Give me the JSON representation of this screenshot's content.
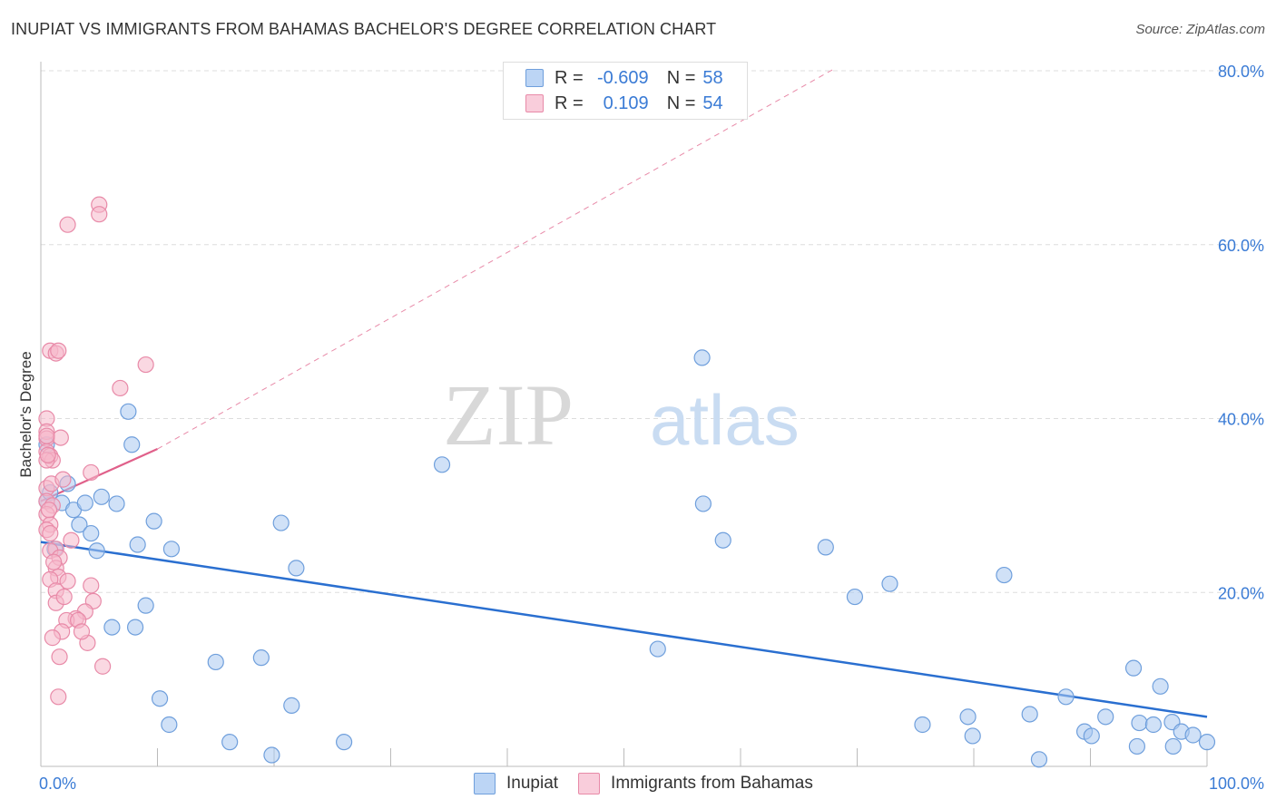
{
  "header": {
    "title": "INUPIAT VS IMMIGRANTS FROM BAHAMAS BACHELOR'S DEGREE CORRELATION CHART",
    "source": "Source: ZipAtlas.com"
  },
  "legend": {
    "r_label": "R =",
    "n_label": "N =",
    "series": [
      {
        "name": "Inupiat",
        "r": "-0.609",
        "n": "58"
      },
      {
        "name": "Immigrants from Bahamas",
        "r": "0.109",
        "n": "54"
      }
    ]
  },
  "watermark": {
    "zip": "ZIP",
    "atlas": "atlas"
  },
  "colors": {
    "inupiat_fill": "#a9c8f0",
    "inupiat_stroke": "#6f9fdc",
    "inupiat_line": "#2a6fd0",
    "bahamas_fill": "#f6b8cb",
    "bahamas_stroke": "#e88aa8",
    "bahamas_line": "#e0608a",
    "axis_label": "#3a7bd5",
    "grid": "#dddddd"
  },
  "chart_data": {
    "type": "scatter",
    "title": "INUPIAT VS IMMIGRANTS FROM BAHAMAS BACHELOR'S DEGREE CORRELATION CHART",
    "xlabel": "",
    "ylabel": "Bachelor's Degree",
    "xlim": [
      0,
      100
    ],
    "ylim": [
      0,
      80
    ],
    "x_tick_labels": [
      {
        "value": 0,
        "label": "0.0%"
      },
      {
        "value": 100,
        "label": "100.0%"
      }
    ],
    "y_ticks": [
      {
        "value": 20,
        "label": "20.0%"
      },
      {
        "value": 40,
        "label": "40.0%"
      },
      {
        "value": 60,
        "label": "60.0%"
      },
      {
        "value": 80,
        "label": "80.0%"
      }
    ],
    "series": [
      {
        "name": "Inupiat",
        "r": -0.609,
        "n": 58,
        "trend": {
          "x": [
            0,
            100
          ],
          "y": [
            25.8,
            5.7
          ],
          "style": "solid"
        },
        "points": [
          [
            0.5,
            37.0
          ],
          [
            0.5,
            30.5
          ],
          [
            0.8,
            31.5
          ],
          [
            1.2,
            25.0
          ],
          [
            1.8,
            30.3
          ],
          [
            2.3,
            32.5
          ],
          [
            2.8,
            29.5
          ],
          [
            3.3,
            27.8
          ],
          [
            3.8,
            30.3
          ],
          [
            4.3,
            26.8
          ],
          [
            4.8,
            24.8
          ],
          [
            5.2,
            31.0
          ],
          [
            6.1,
            16.0
          ],
          [
            6.5,
            30.2
          ],
          [
            7.5,
            40.8
          ],
          [
            7.8,
            37.0
          ],
          [
            8.1,
            16.0
          ],
          [
            8.3,
            25.5
          ],
          [
            9.0,
            18.5
          ],
          [
            9.7,
            28.2
          ],
          [
            10.2,
            7.8
          ],
          [
            11.0,
            4.8
          ],
          [
            11.2,
            25.0
          ],
          [
            15.0,
            12.0
          ],
          [
            16.2,
            2.8
          ],
          [
            18.9,
            12.5
          ],
          [
            19.8,
            1.3
          ],
          [
            20.6,
            28.0
          ],
          [
            21.5,
            7.0
          ],
          [
            21.9,
            22.8
          ],
          [
            26.0,
            2.8
          ],
          [
            34.4,
            34.7
          ],
          [
            52.9,
            13.5
          ],
          [
            56.7,
            47.0
          ],
          [
            56.8,
            30.2
          ],
          [
            58.5,
            26.0
          ],
          [
            67.3,
            25.2
          ],
          [
            69.8,
            19.5
          ],
          [
            72.8,
            21.0
          ],
          [
            75.6,
            4.8
          ],
          [
            79.5,
            5.7
          ],
          [
            79.9,
            3.5
          ],
          [
            82.6,
            22.0
          ],
          [
            84.8,
            6.0
          ],
          [
            85.6,
            0.8
          ],
          [
            87.9,
            8.0
          ],
          [
            89.5,
            4.0
          ],
          [
            90.1,
            3.5
          ],
          [
            91.3,
            5.7
          ],
          [
            93.7,
            11.3
          ],
          [
            94.0,
            2.3
          ],
          [
            94.2,
            5.0
          ],
          [
            95.4,
            4.8
          ],
          [
            96.0,
            9.2
          ],
          [
            97.0,
            5.1
          ],
          [
            97.1,
            2.3
          ],
          [
            97.8,
            4.0
          ],
          [
            98.8,
            3.6
          ],
          [
            100.0,
            2.8
          ]
        ]
      },
      {
        "name": "Immigrants from Bahamas",
        "r": 0.109,
        "n": 54,
        "trend": {
          "x": [
            0,
            10
          ],
          "y": [
            30.5,
            36.5
          ],
          "style": "solid"
        },
        "trend_extended": {
          "x": [
            10,
            68
          ],
          "y": [
            36.5,
            80.2
          ],
          "style": "dashed"
        },
        "points": [
          [
            2.3,
            62.3
          ],
          [
            5.0,
            64.6
          ],
          [
            5.0,
            63.5
          ],
          [
            0.8,
            47.8
          ],
          [
            1.3,
            47.5
          ],
          [
            1.5,
            47.8
          ],
          [
            9.0,
            46.2
          ],
          [
            6.8,
            43.5
          ],
          [
            0.5,
            40.0
          ],
          [
            0.5,
            38.5
          ],
          [
            0.5,
            37.7
          ],
          [
            1.7,
            37.8
          ],
          [
            0.5,
            36.2
          ],
          [
            0.8,
            35.7
          ],
          [
            1.0,
            35.2
          ],
          [
            0.5,
            35.2
          ],
          [
            4.3,
            33.8
          ],
          [
            0.5,
            32.0
          ],
          [
            0.5,
            30.5
          ],
          [
            1.0,
            30.0
          ],
          [
            0.5,
            29.0
          ],
          [
            0.8,
            27.8
          ],
          [
            0.5,
            27.2
          ],
          [
            0.8,
            26.8
          ],
          [
            1.3,
            25.0
          ],
          [
            0.8,
            24.8
          ],
          [
            1.6,
            24.0
          ],
          [
            1.3,
            22.8
          ],
          [
            1.5,
            21.8
          ],
          [
            0.8,
            21.5
          ],
          [
            2.3,
            21.3
          ],
          [
            4.3,
            20.8
          ],
          [
            1.3,
            20.2
          ],
          [
            4.5,
            19.0
          ],
          [
            1.3,
            18.8
          ],
          [
            3.8,
            17.8
          ],
          [
            3.0,
            17.0
          ],
          [
            2.2,
            16.8
          ],
          [
            3.2,
            16.8
          ],
          [
            1.8,
            15.5
          ],
          [
            1.0,
            14.8
          ],
          [
            4.0,
            14.2
          ],
          [
            1.6,
            12.6
          ],
          [
            5.3,
            11.5
          ],
          [
            1.5,
            8.0
          ],
          [
            0.5,
            38.0
          ],
          [
            0.9,
            32.5
          ],
          [
            1.9,
            33.0
          ],
          [
            2.6,
            26.0
          ],
          [
            0.7,
            29.5
          ],
          [
            1.1,
            23.5
          ],
          [
            2.0,
            19.5
          ],
          [
            3.5,
            15.5
          ],
          [
            0.6,
            35.8
          ]
        ]
      }
    ]
  }
}
